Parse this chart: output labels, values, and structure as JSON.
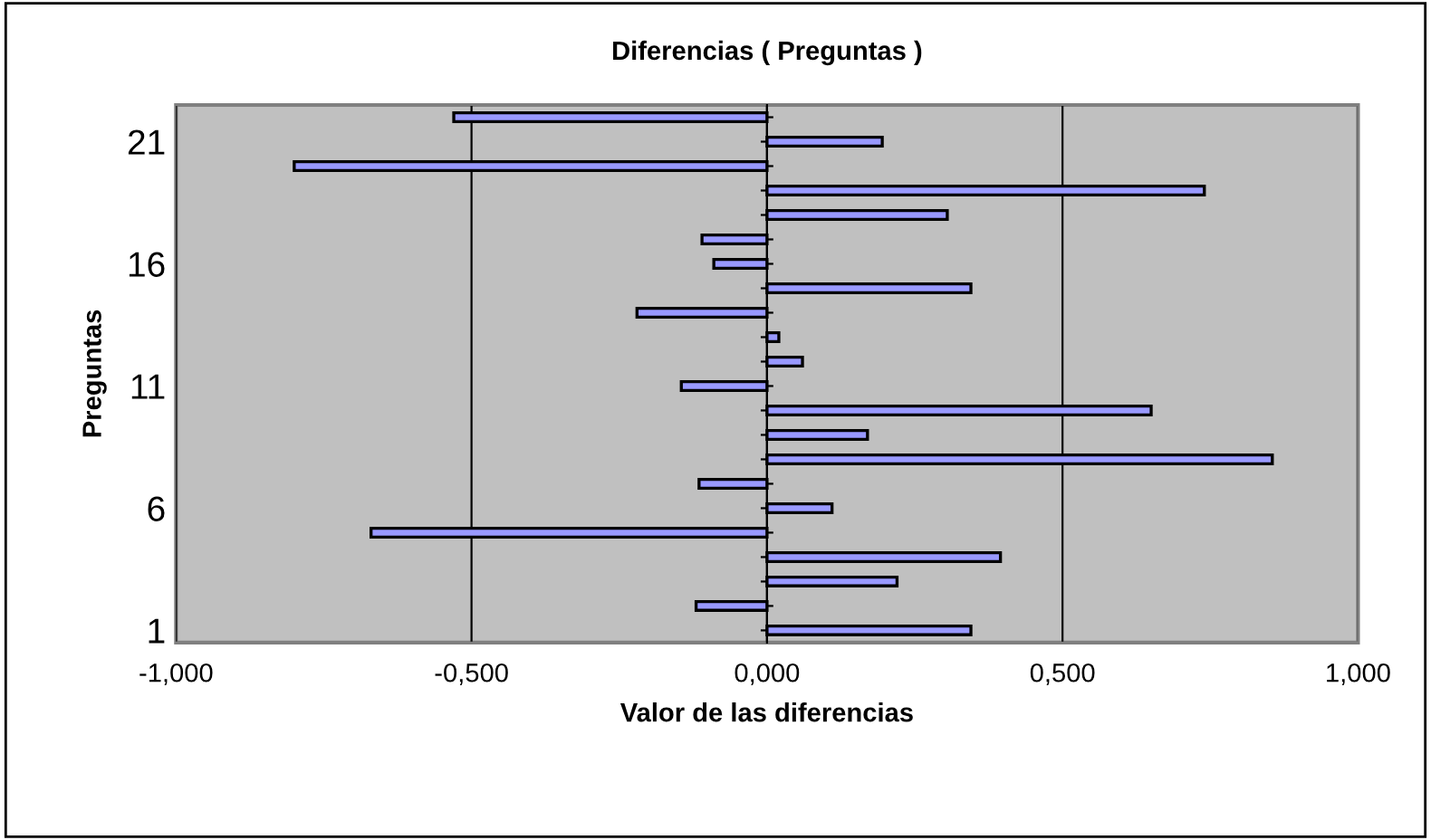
{
  "chart_data": {
    "type": "bar",
    "orientation": "horizontal",
    "title": "Diferencias ( Preguntas )",
    "xlabel": "Valor de las diferencias",
    "ylabel": "Preguntas",
    "categories": [
      null,
      "21",
      null,
      null,
      null,
      null,
      "16",
      null,
      null,
      null,
      null,
      "11",
      null,
      null,
      null,
      null,
      "6",
      null,
      null,
      null,
      null,
      "1"
    ],
    "values": [
      -0.53,
      0.195,
      -0.8,
      0.74,
      0.305,
      -0.11,
      -0.09,
      0.345,
      -0.22,
      0.02,
      0.06,
      -0.145,
      0.65,
      0.17,
      0.855,
      -0.115,
      0.11,
      -0.67,
      0.395,
      0.22,
      -0.12,
      0.345
    ],
    "color": "#9999ff",
    "xlim": [
      -1,
      1
    ],
    "xticks": [
      {
        "value": -1,
        "label": "-1,000"
      },
      {
        "value": -0.5,
        "label": "-0,500"
      },
      {
        "value": 0,
        "label": "0,000"
      },
      {
        "value": 0.5,
        "label": "0,500"
      },
      {
        "value": 1,
        "label": "1,000"
      }
    ],
    "grid": "x",
    "legend": false
  }
}
